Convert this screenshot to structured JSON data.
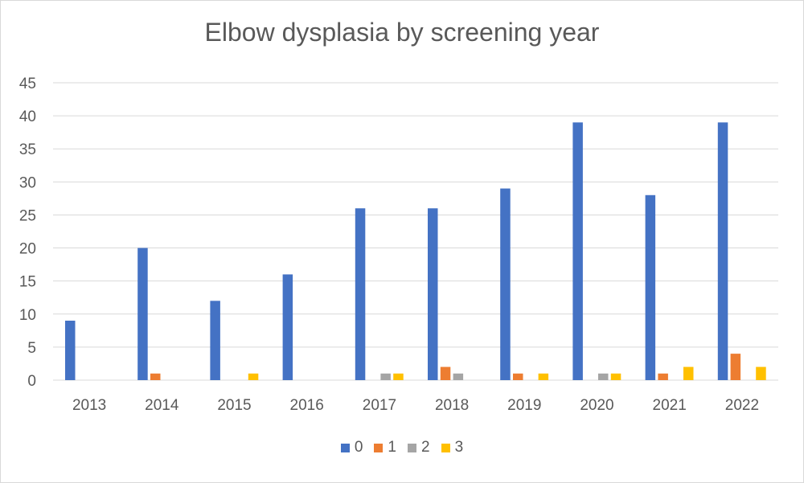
{
  "chart_data": {
    "type": "bar",
    "title": "Elbow dysplasia by screening year",
    "xlabel": "",
    "ylabel": "",
    "categories": [
      "2013",
      "2014",
      "2015",
      "2016",
      "2017",
      "2018",
      "2019",
      "2020",
      "2021",
      "2022"
    ],
    "series": [
      {
        "name": "0",
        "color": "#4472C4",
        "values": [
          9,
          20,
          12,
          16,
          26,
          26,
          29,
          39,
          28,
          39
        ]
      },
      {
        "name": "1",
        "color": "#ED7D31",
        "values": [
          0,
          1,
          0,
          0,
          0,
          2,
          1,
          0,
          1,
          4
        ]
      },
      {
        "name": "2",
        "color": "#A5A5A5",
        "values": [
          0,
          0,
          0,
          0,
          1,
          1,
          0,
          1,
          0,
          0
        ]
      },
      {
        "name": "3",
        "color": "#FFC000",
        "values": [
          0,
          0,
          1,
          0,
          1,
          0,
          1,
          1,
          2,
          2
        ]
      }
    ],
    "ylim": [
      0,
      45
    ],
    "yticks": [
      0,
      5,
      10,
      15,
      20,
      25,
      30,
      35,
      40,
      45
    ],
    "grid": true,
    "legend_position": "bottom"
  }
}
